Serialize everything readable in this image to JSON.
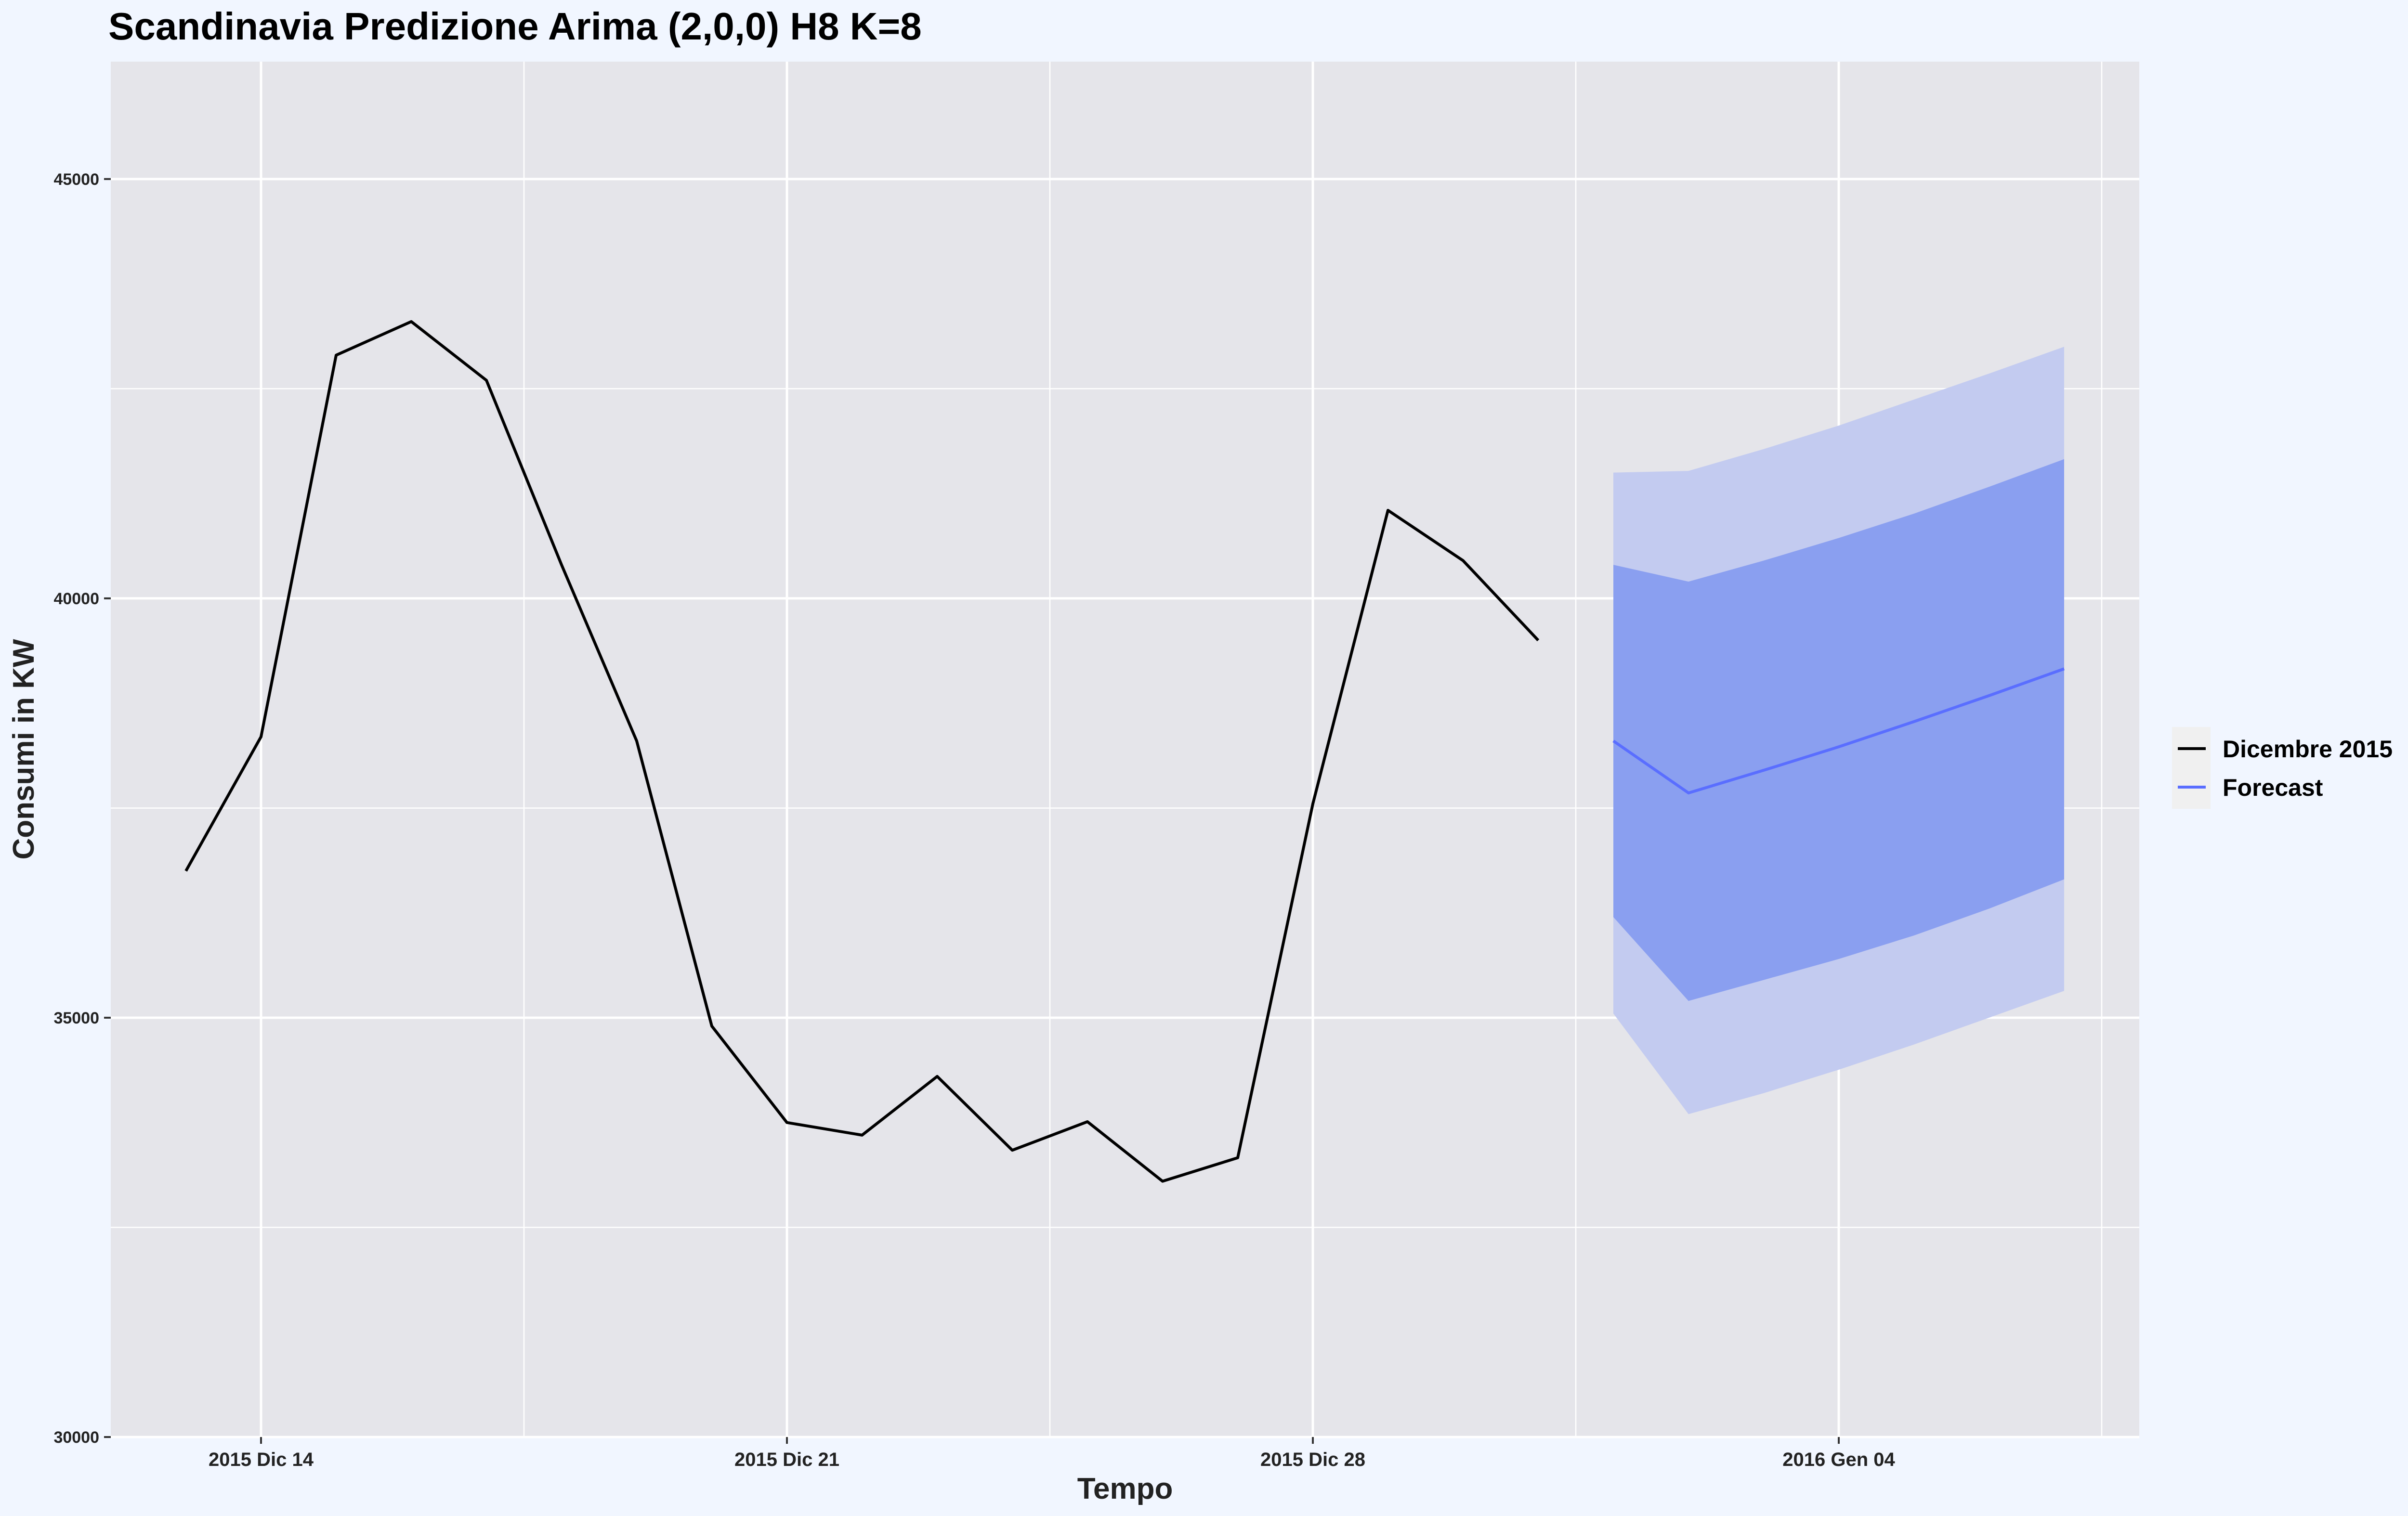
{
  "chart_data": {
    "type": "line",
    "title": "Scandinavia Predizione Arima (2,0,0) H8 K=8",
    "xlabel": "Tempo",
    "ylabel": "Consumi in KW",
    "x_tick_labels": [
      {
        "date": "2015-12-14",
        "label": "2015 Dic 14"
      },
      {
        "date": "2015-12-21",
        "label": "2015 Dic 21"
      },
      {
        "date": "2015-12-28",
        "label": "2015 Dic 28"
      },
      {
        "date": "2016-01-04",
        "label": "2016 Gen 04"
      }
    ],
    "y_ticks": [
      30000,
      35000,
      40000,
      45000
    ],
    "y_tick_labels": [
      "30000",
      "35000",
      "40000",
      "45000"
    ],
    "xlim": [
      "2015-12-12",
      "2016-01-08"
    ],
    "ylim": [
      30000,
      46400
    ],
    "grid": true,
    "legend_position": "right",
    "colors": {
      "panel_bg": "#e5e5ea",
      "page_bg": "#f1f6ff",
      "grid": "#ffffff",
      "actual_line": "#000000",
      "forecast_line": "#5a6eff",
      "band_80": "#8a9ff0",
      "band_95": "#c3cbf0"
    },
    "series": [
      {
        "name": "Dicembre 2015",
        "points": [
          {
            "x": "2015-12-13",
            "y": 36750
          },
          {
            "x": "2015-12-14",
            "y": 38350
          },
          {
            "x": "2015-12-15",
            "y": 42900
          },
          {
            "x": "2015-12-16",
            "y": 43300
          },
          {
            "x": "2015-12-17",
            "y": 42600
          },
          {
            "x": "2015-12-18",
            "y": 40400
          },
          {
            "x": "2015-12-19",
            "y": 38300
          },
          {
            "x": "2015-12-20",
            "y": 34900
          },
          {
            "x": "2015-12-21",
            "y": 33750
          },
          {
            "x": "2015-12-22",
            "y": 33600
          },
          {
            "x": "2015-12-23",
            "y": 34300
          },
          {
            "x": "2015-12-24",
            "y": 33420
          },
          {
            "x": "2015-12-25",
            "y": 33760
          },
          {
            "x": "2015-12-26",
            "y": 33050
          },
          {
            "x": "2015-12-27",
            "y": 33330
          },
          {
            "x": "2015-12-28",
            "y": 37550
          },
          {
            "x": "2015-12-29",
            "y": 41050
          },
          {
            "x": "2015-12-30",
            "y": 40450
          },
          {
            "x": "2015-12-31",
            "y": 39500
          }
        ]
      },
      {
        "name": "Forecast",
        "points": [
          {
            "x": "2016-01-01",
            "y": 38300,
            "lo80": 36200,
            "hi80": 40400,
            "lo95": 35050,
            "hi95": 41500
          },
          {
            "x": "2016-01-02",
            "y": 37680,
            "lo80": 35200,
            "hi80": 40200,
            "lo95": 33850,
            "hi95": 41520
          },
          {
            "x": "2016-01-03",
            "y": 37950,
            "lo80": 35450,
            "hi80": 40450,
            "lo95": 34100,
            "hi95": 41780
          },
          {
            "x": "2016-01-04",
            "y": 38230,
            "lo80": 35700,
            "hi80": 40720,
            "lo95": 34380,
            "hi95": 42060
          },
          {
            "x": "2016-01-05",
            "y": 38530,
            "lo80": 35980,
            "hi80": 41010,
            "lo95": 34680,
            "hi95": 42370
          },
          {
            "x": "2016-01-06",
            "y": 38840,
            "lo80": 36300,
            "hi80": 41330,
            "lo95": 35000,
            "hi95": 42680
          },
          {
            "x": "2016-01-07",
            "y": 39160,
            "lo80": 36650,
            "hi80": 41660,
            "lo95": 35320,
            "hi95": 43000
          }
        ]
      }
    ],
    "legend": [
      {
        "name": "Dicembre 2015",
        "color": "#000000"
      },
      {
        "name": "Forecast",
        "color": "#5a6eff"
      }
    ]
  }
}
